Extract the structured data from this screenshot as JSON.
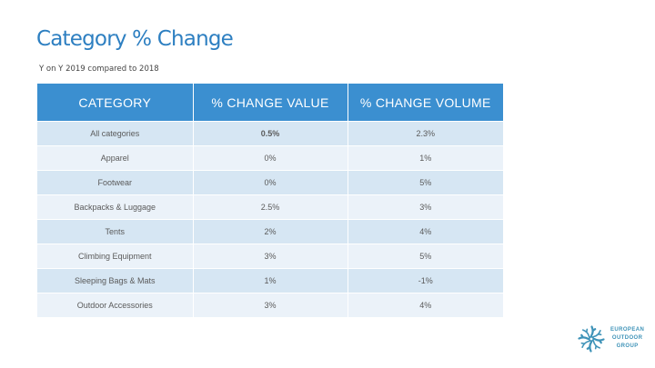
{
  "slide": {
    "title": "Category % Change",
    "subtitle": "Y on Y 2019 compared to 2018"
  },
  "table": {
    "headers": [
      "CATEGORY",
      "% CHANGE VALUE",
      "% CHANGE VOLUME"
    ],
    "rows": [
      [
        "All categories",
        "0.5%",
        "2.3%"
      ],
      [
        "Apparel",
        "0%",
        "1%"
      ],
      [
        "Footwear",
        "0%",
        "5%"
      ],
      [
        "Backpacks & Luggage",
        "2.5%",
        "3%"
      ],
      [
        "Tents",
        "2%",
        "4%"
      ],
      [
        "Climbing Equipment",
        "3%",
        "5%"
      ],
      [
        "Sleeping Bags & Mats",
        "1%",
        "-1%"
      ],
      [
        "Outdoor Accessories",
        "3%",
        "4%"
      ]
    ]
  },
  "logo": {
    "lines": [
      "EUROPEAN",
      "OUTDOOR",
      "GROUP"
    ],
    "icon": "snowflake-spiral-icon",
    "color": "#3f93b8"
  },
  "colors": {
    "title": "#2d7fc1",
    "header_bg": "#3b8fd0",
    "row_dark": "#d6e6f3",
    "row_light": "#ebf2f9"
  }
}
